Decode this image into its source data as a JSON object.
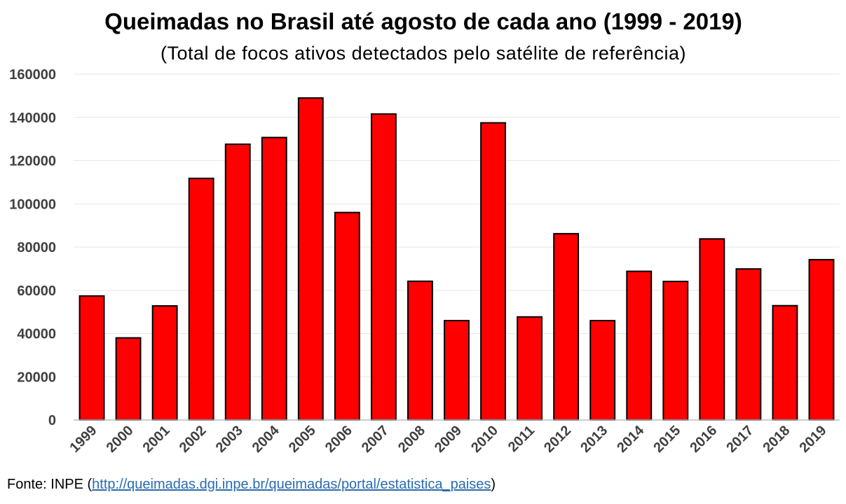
{
  "chart_data": {
    "type": "bar",
    "title": "Queimadas no Brasil até agosto de cada ano (1999 - 2019)",
    "subtitle": "(Total de focos ativos detectados pelo satélite de referência)",
    "categories": [
      "1999",
      "2000",
      "2001",
      "2002",
      "2003",
      "2004",
      "2005",
      "2006",
      "2007",
      "2008",
      "2009",
      "2010",
      "2011",
      "2012",
      "2013",
      "2014",
      "2015",
      "2016",
      "2017",
      "2018",
      "2019"
    ],
    "values": [
      57400,
      38000,
      52800,
      111800,
      127600,
      130700,
      149000,
      96000,
      141600,
      64200,
      46000,
      137500,
      47700,
      86200,
      46000,
      68800,
      64100,
      83800,
      69900,
      52900,
      74200
    ],
    "ylim": [
      0,
      160000
    ],
    "yticks": [
      0,
      20000,
      40000,
      60000,
      80000,
      100000,
      120000,
      140000,
      160000
    ],
    "xlabel": "",
    "ylabel": "",
    "grid": true,
    "bar_color": "#ff0000"
  },
  "source": {
    "prefix": "Fonte: INPE (",
    "link": "http://queimadas.dgi.inpe.br/queimadas/portal/estatistica_paises",
    "suffix": ")"
  }
}
